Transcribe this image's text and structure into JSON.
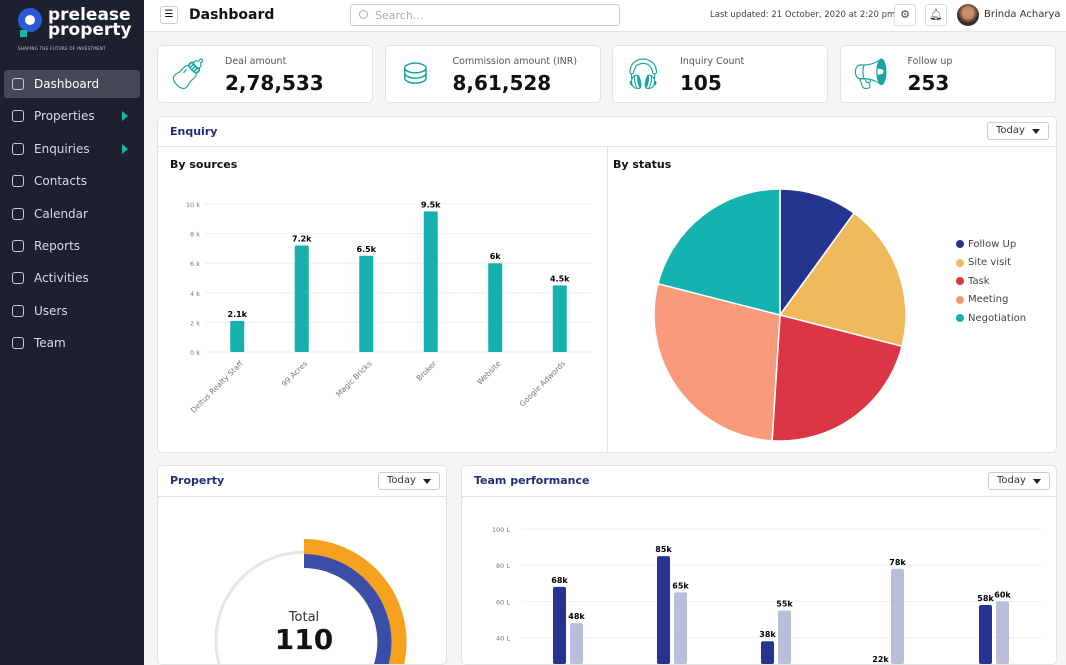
{
  "brand": {
    "name_line1": "prelease",
    "name_line2": "property",
    "tagline": "SHAPING THE FUTURE OF INVESTMENT"
  },
  "sidebar": {
    "items": [
      {
        "label": "Dashboard",
        "active": true,
        "icon": "grid-icon"
      },
      {
        "label": "Properties",
        "submenu": true,
        "icon": "warning-icon"
      },
      {
        "label": "Enquiries",
        "submenu": true,
        "icon": "headset-icon"
      },
      {
        "label": "Contacts",
        "icon": "contact-icon"
      },
      {
        "label": "Calendar",
        "icon": "calendar-icon"
      },
      {
        "label": "Reports",
        "icon": "report-icon"
      },
      {
        "label": "Activities",
        "icon": "activity-icon"
      },
      {
        "label": "Users",
        "icon": "user-icon"
      },
      {
        "label": "Team",
        "icon": "team-icon"
      }
    ]
  },
  "header": {
    "title": "Dashboard",
    "search_placeholder": "Search...",
    "last_updated": "Last updated: 21 October, 2020 at 2:20 pm",
    "user": "Brinda Acharya"
  },
  "stats": [
    {
      "label": "Deal amount",
      "value": "2,78,533",
      "icon": "bottle-icon"
    },
    {
      "label": "Commission amount (INR)",
      "value": "8,61,528",
      "icon": "commission-icon"
    },
    {
      "label": "Inquiry Count",
      "value": "105",
      "icon": "headset-icon"
    },
    {
      "label": "Follow up",
      "value": "253",
      "icon": "megaphone-icon"
    }
  ],
  "enquiry": {
    "title": "Enquiry",
    "filter": "Today",
    "by_sources": "By sources",
    "by_status": "By status"
  },
  "property": {
    "title": "Property",
    "filter": "Today",
    "total_label": "Total",
    "total_value": "110"
  },
  "team": {
    "title": "Team performance",
    "filter": "Today"
  },
  "colors": {
    "accent": "#17a5a0",
    "navy": "#1f2d7a",
    "sidebar": "#1e2030"
  },
  "chart_data": [
    {
      "type": "bar",
      "title": "By sources",
      "categories": [
        "Deltus Realty Staff",
        "99 Acres",
        "Magic Bricks",
        "Broker",
        "Website",
        "Google Adwords"
      ],
      "values": [
        2.1,
        7.2,
        6.5,
        9.5,
        6,
        4.5
      ],
      "labels": [
        "2.1k",
        "7.2k",
        "6.5k",
        "9.5k",
        "6k",
        "4.5k"
      ],
      "yticks": [
        "0 k",
        "2 k",
        "4 k",
        "6 k",
        "8 k",
        "10 k"
      ],
      "ylim": [
        0,
        10
      ],
      "color": "#17b0ad",
      "grid": true
    },
    {
      "type": "pie",
      "title": "By status",
      "legend": "right",
      "slices": [
        {
          "name": "Follow Up",
          "value": 10,
          "color": "#25358f"
        },
        {
          "name": "Site visit",
          "value": 19,
          "color": "#efb95c"
        },
        {
          "name": "Task",
          "value": 22,
          "color": "#dc3545"
        },
        {
          "name": "Meeting",
          "value": 28,
          "color": "#f99a7a"
        },
        {
          "name": "Negotiation",
          "value": 21,
          "color": "#14b3b0"
        }
      ]
    },
    {
      "type": "bar",
      "title": "Team performance",
      "yticks": [
        "40 L",
        "60 L",
        "80 L",
        "100 L"
      ],
      "ylim": [
        0,
        100
      ],
      "grid": true,
      "series": [
        {
          "values": [
            68,
            85,
            38,
            22,
            58
          ],
          "labels": [
            "68k",
            "85k",
            "38k",
            "22k",
            "58k"
          ],
          "color": "#25358f"
        },
        {
          "values": [
            48,
            65,
            55,
            78,
            60
          ],
          "labels": [
            "48k",
            "65k",
            "55k",
            "78k",
            "60k"
          ],
          "color": "#b9bedb"
        }
      ]
    },
    {
      "type": "pie",
      "title": "Property",
      "total": "110"
    }
  ]
}
